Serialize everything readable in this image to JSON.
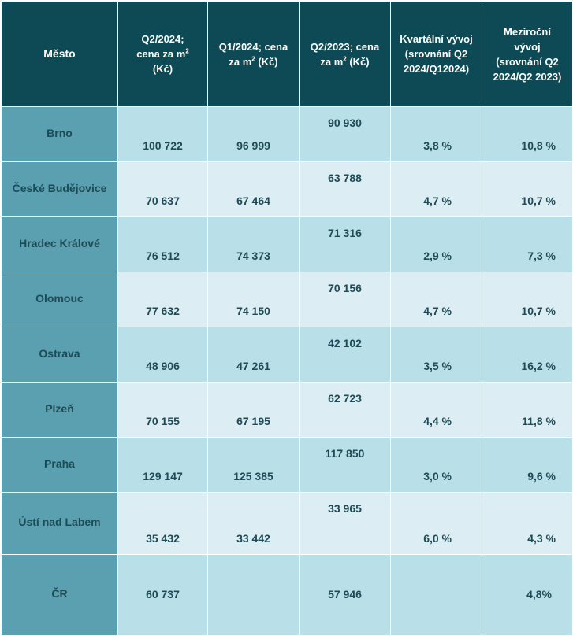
{
  "headers": {
    "city": "Město",
    "q2_2024_a": "Q2/2024;",
    "q2_2024_b": "cena za m",
    "q2_2024_c": "(Kč)",
    "q1_2024_a": "Q1/2024;  cena",
    "q1_2024_b": "za m",
    "q1_2024_c": " (Kč)",
    "q2_2023_a": "Q2/2023; cena",
    "q2_2023_b": "za m",
    "q2_2023_c": " (Kč)",
    "sup": "2",
    "quarterly_a": "Kvartální vývoj",
    "quarterly_b": "(srovnání Q2",
    "quarterly_c": "2024/Q12024)",
    "yearly_a": "Meziroční",
    "yearly_b": "vývoj",
    "yearly_c": "(srovnání Q2",
    "yearly_d": "2024/Q2 2023)"
  },
  "rows": [
    {
      "city": "Brno",
      "q2_2024": "100 722",
      "q1_2024": "96 999",
      "q2_2023": "90 930",
      "quarterly": "3,8 %",
      "yearly": "10,8 %"
    },
    {
      "city": "České Budějovice",
      "q2_2024": "70 637",
      "q1_2024": "67 464",
      "q2_2023": "63 788",
      "quarterly": "4,7 %",
      "yearly": "10,7 %"
    },
    {
      "city": "Hradec Králové",
      "q2_2024": "76 512",
      "q1_2024": "74 373",
      "q2_2023": "71 316",
      "quarterly": "2,9 %",
      "yearly": "7,3 %"
    },
    {
      "city": "Olomouc",
      "q2_2024": "77 632",
      "q1_2024": "74 150",
      "q2_2023": "70 156",
      "quarterly": "4,7 %",
      "yearly": "10,7 %"
    },
    {
      "city": "Ostrava",
      "q2_2024": "48 906",
      "q1_2024": "47 261",
      "q2_2023": "42 102",
      "quarterly": "3,5 %",
      "yearly": "16,2 %"
    },
    {
      "city": "Plzeň",
      "q2_2024": "70 155",
      "q1_2024": "67 195",
      "q2_2023": "62 723",
      "quarterly": "4,4 %",
      "yearly": "11,8 %"
    },
    {
      "city": "Praha",
      "q2_2024": "129 147",
      "q1_2024": "125 385",
      "q2_2023": "117 850",
      "quarterly": "3,0 %",
      "yearly": "9,6 %"
    },
    {
      "city": "Ústí nad Labem",
      "q2_2024": "35 432",
      "q1_2024": "33 442",
      "q2_2023": "33 965",
      "quarterly": "6,0 %",
      "yearly": "4,3 %"
    },
    {
      "city": "ČR",
      "q2_2024": "60 737",
      "q1_2024": "",
      "q2_2023": "57 946",
      "quarterly": "",
      "yearly": "4,8%"
    }
  ],
  "colors": {
    "header_bg": "#0d4a55",
    "city_bg": "#5aa0b0",
    "row_odd_bg": "#b9dfe8",
    "row_even_bg": "#dcedf3",
    "text": "#1d4a55"
  }
}
